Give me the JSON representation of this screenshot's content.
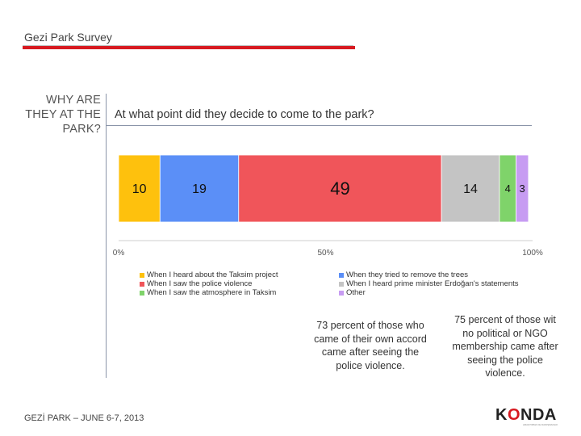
{
  "header": {
    "title": "Gezi Park Survey"
  },
  "side_label": {
    "line1": "WHY ARE",
    "line2": "THEY AT THE",
    "line3": "PARK?"
  },
  "question": "At what point did they decide to come to the park?",
  "chart_data": {
    "type": "bar",
    "orientation": "horizontal-stacked-100",
    "xlim": [
      0,
      100
    ],
    "x_ticks": [
      "0%",
      "50%",
      "100%"
    ],
    "x_tick_values": [
      0,
      50,
      100
    ],
    "series": [
      {
        "name": "When I heard about the Taksim project",
        "value": 10,
        "color": "#fec10d"
      },
      {
        "name": "When they tried to remove the trees",
        "value": 19,
        "color": "#5b8ff7"
      },
      {
        "name": "When I saw the police violence",
        "value": 49,
        "color": "#f0555a"
      },
      {
        "name": "When I heard prime minister Erdoğan's statements",
        "value": 14,
        "color": "#c4c4c4"
      },
      {
        "name": "When I saw the atmosphere in Taksim",
        "value": 4,
        "color": "#7fd36a"
      },
      {
        "name": "Other",
        "value": 3,
        "color": "#c79cf2"
      }
    ],
    "legend": {
      "left_column": [
        0,
        2,
        4
      ],
      "right_column": [
        1,
        3,
        5
      ]
    }
  },
  "notes": [
    "73 percent of those who came of their own accord came after seeing the police violence.",
    "75 percent of those wit no political or NGO membership came after seeing the police violence."
  ],
  "footer": "GEZİ PARK – JUNE 6-7, 2013",
  "logo": {
    "word": "KONDA",
    "tagline": "ARAŞTIRMA VE DANIŞMANLIK"
  }
}
